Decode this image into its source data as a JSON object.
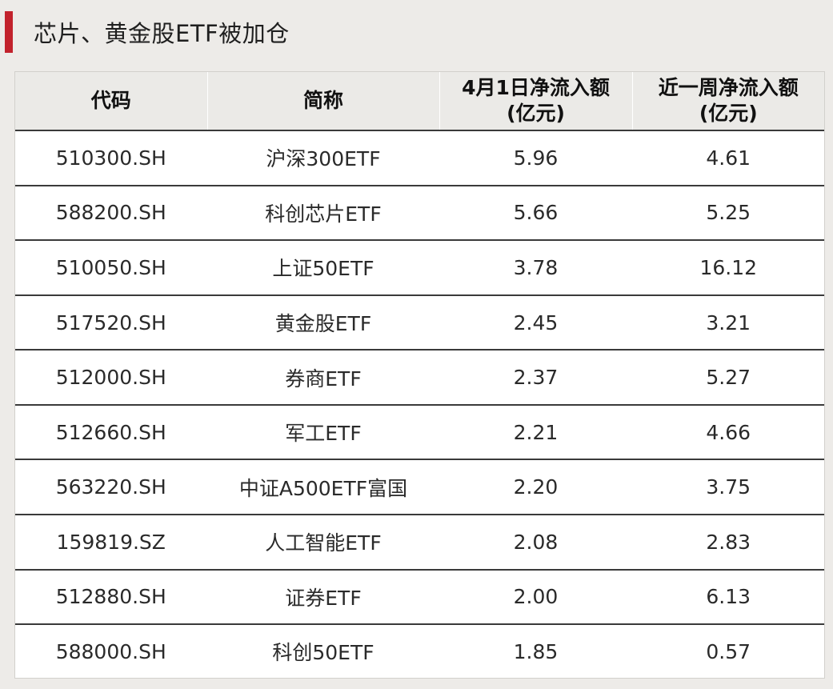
{
  "title": "芯片、黄金股ETF被加仓",
  "colors": {
    "accent": "#c2222c",
    "background": "#edebe8",
    "header_bg": "#ebeae7",
    "row_bg": "#ffffff",
    "rule": "#3a3a3a"
  },
  "table": {
    "headers": {
      "code": "代码",
      "name": "简称",
      "net_flow_apr1_line1": "4月1日净流入额",
      "net_flow_apr1_line2": "(亿元)",
      "net_flow_week_line1": "近一周净流入额",
      "net_flow_week_line2": "(亿元)"
    },
    "rows": [
      {
        "code": "510300.SH",
        "name": "沪深300ETF",
        "apr1": "5.96",
        "week": "4.61"
      },
      {
        "code": "588200.SH",
        "name": "科创芯片ETF",
        "apr1": "5.66",
        "week": "5.25"
      },
      {
        "code": "510050.SH",
        "name": "上证50ETF",
        "apr1": "3.78",
        "week": "16.12"
      },
      {
        "code": "517520.SH",
        "name": "黄金股ETF",
        "apr1": "2.45",
        "week": "3.21"
      },
      {
        "code": "512000.SH",
        "name": "券商ETF",
        "apr1": "2.37",
        "week": "5.27"
      },
      {
        "code": "512660.SH",
        "name": "军工ETF",
        "apr1": "2.21",
        "week": "4.66"
      },
      {
        "code": "563220.SH",
        "name": "中证A500ETF富国",
        "apr1": "2.20",
        "week": "3.75"
      },
      {
        "code": "159819.SZ",
        "name": "人工智能ETF",
        "apr1": "2.08",
        "week": "2.83"
      },
      {
        "code": "512880.SH",
        "name": "证券ETF",
        "apr1": "2.00",
        "week": "6.13"
      },
      {
        "code": "588000.SH",
        "name": "科创50ETF",
        "apr1": "1.85",
        "week": "0.57"
      }
    ]
  }
}
